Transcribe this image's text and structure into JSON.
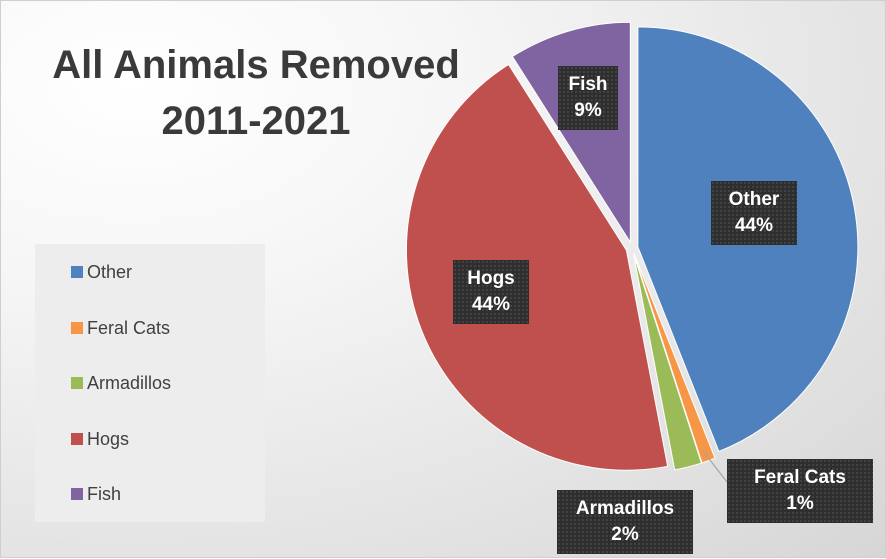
{
  "chart_data": {
    "type": "pie",
    "title": [
      "All Animals Removed",
      "2011-2021"
    ],
    "categories": [
      "Other",
      "Feral Cats",
      "Armadillos",
      "Hogs",
      "Fish"
    ],
    "values": [
      44,
      1,
      2,
      44,
      9
    ],
    "percent_labels": [
      "44%",
      "1%",
      "2%",
      "44%",
      "9%"
    ],
    "colors": [
      "#4e81bd",
      "#f79646",
      "#9bbb59",
      "#c0504d",
      "#8064a2"
    ],
    "legend_position": "left",
    "exploded": true
  }
}
